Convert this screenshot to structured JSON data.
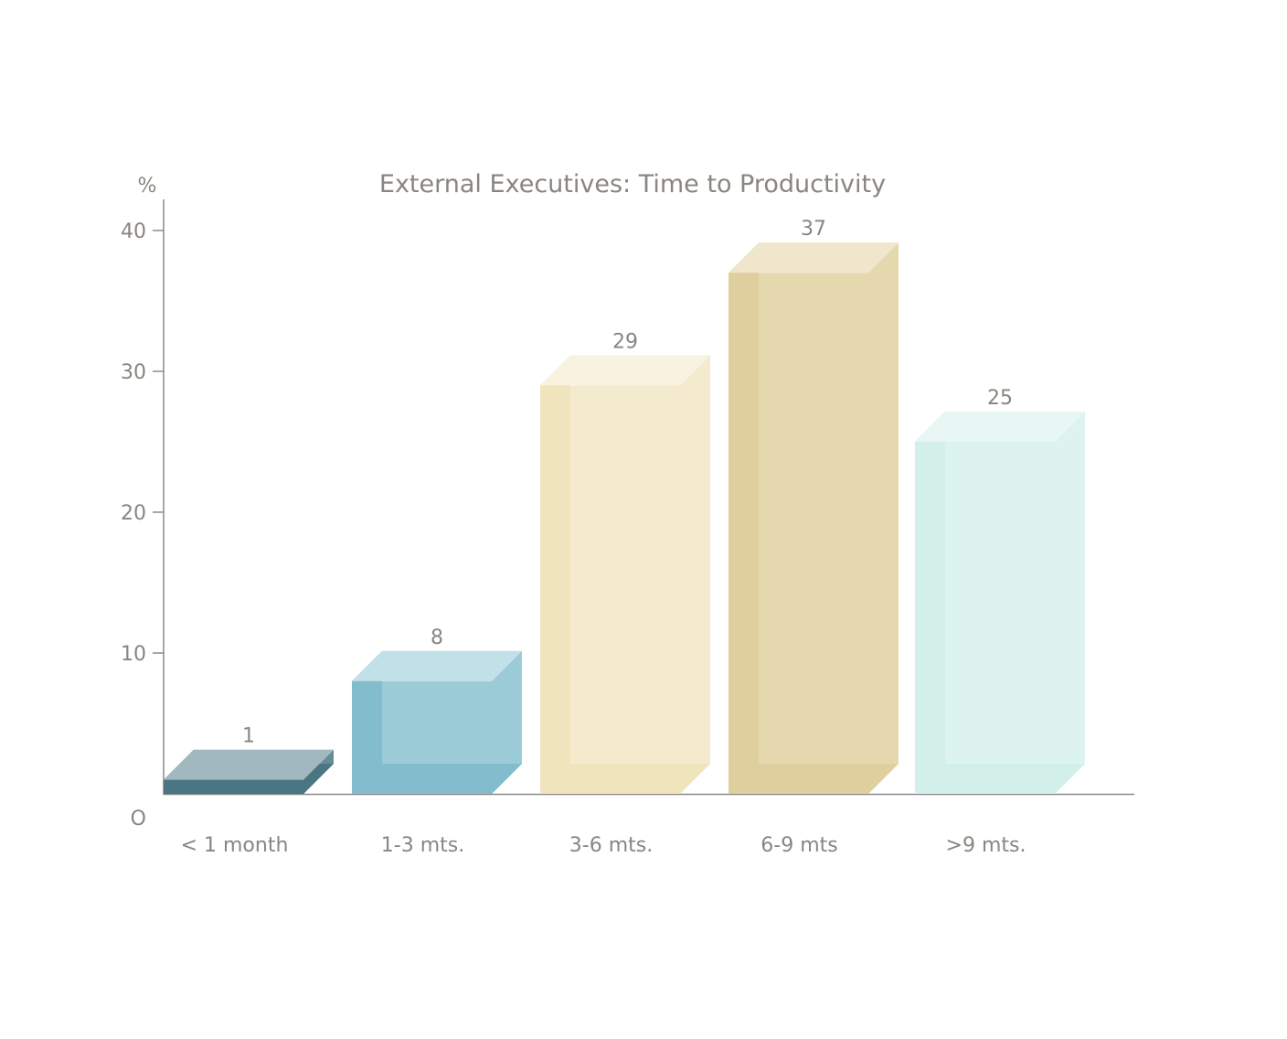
{
  "chart_data": {
    "type": "bar",
    "title": "External Executives: Time to Productivity",
    "ylabel": "%",
    "xlabel": "",
    "ylim": [
      0,
      40
    ],
    "yticks": [
      "O",
      "10",
      "20",
      "30",
      "40"
    ],
    "ytick_values": [
      0,
      10,
      20,
      30,
      40
    ],
    "categories": [
      "< 1 month",
      "1-3 mts.",
      "3-6 mts.",
      "6-9 mts",
      ">9 mts."
    ],
    "values": [
      1,
      8,
      29,
      37,
      25
    ],
    "data_labels": [
      "1",
      "8",
      "29",
      "37",
      "25"
    ],
    "style": "3d-box",
    "grid": false,
    "colors": [
      {
        "front": "#668c98",
        "dark": "#4a7582",
        "light": "#a2b8bf"
      },
      {
        "front": "#9ccbd8",
        "dark": "#82bccd",
        "light": "#c2e0e8"
      },
      {
        "front": "#f4ebcf",
        "dark": "#f0e4bd",
        "light": "#f8f2e0"
      },
      {
        "front": "#e6d8ae",
        "dark": "#dfcf9f",
        "light": "#efe6cc"
      },
      {
        "front": "#dcf3ee",
        "dark": "#d3efe9",
        "light": "#e8f7f4"
      }
    ]
  }
}
